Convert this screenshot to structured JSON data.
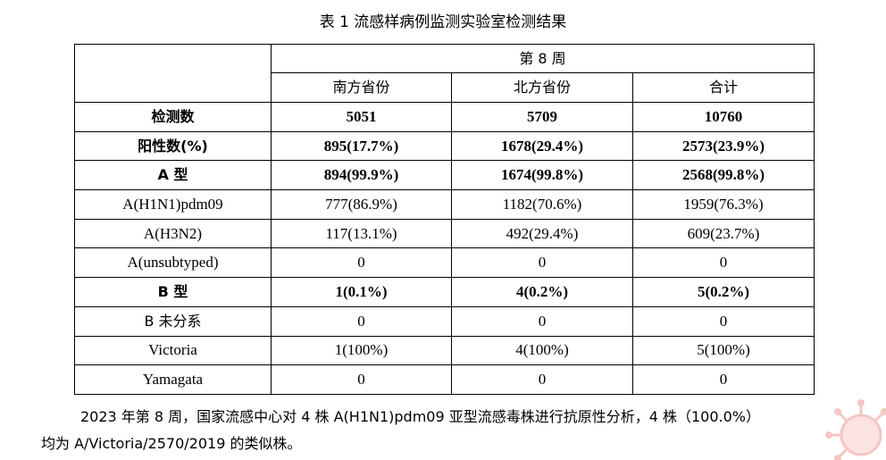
{
  "title": "表 1   流感样病例监测实验室检测结果",
  "table": {
    "week_header": "第 8 周",
    "columns": [
      "南方省份",
      "北方省份",
      "合计"
    ],
    "rows": [
      {
        "label": "检测数",
        "values": [
          "5051",
          "5709",
          "10760"
        ]
      },
      {
        "label": "阳性数(%)",
        "values": [
          "895(17.7%)",
          "1678(29.4%)",
          "2573(23.9%)"
        ]
      },
      {
        "label": "A 型",
        "values": [
          "894(99.9%)",
          "1674(99.8%)",
          "2568(99.8%)"
        ]
      },
      {
        "label": "A(H1N1)pdm09",
        "values": [
          "777(86.9%)",
          "1182(70.6%)",
          "1959(76.3%)"
        ]
      },
      {
        "label": "A(H3N2)",
        "values": [
          "117(13.1%)",
          "492(29.4%)",
          "609(23.7%)"
        ]
      },
      {
        "label": "A(unsubtyped)",
        "values": [
          "0",
          "0",
          "0"
        ]
      },
      {
        "label": "B 型",
        "values": [
          "1(0.1%)",
          "4(0.2%)",
          "5(0.2%)"
        ]
      },
      {
        "label": "B 未分系",
        "values": [
          "0",
          "0",
          "0"
        ]
      },
      {
        "label": "Victoria",
        "values": [
          "1(100%)",
          "4(100%)",
          "5(100%)"
        ]
      },
      {
        "label": "Yamagata",
        "values": [
          "0",
          "0",
          "0"
        ]
      }
    ]
  },
  "footnote": {
    "line1": "2023 年第 8 周，国家流感中心对 4 株 A(H1N1)pdm09 亚型流感毒株进行抗原性分析，4 株（100.0%）",
    "line2": "均为 A/Victoria/2570/2019 的类似株。"
  },
  "decoration": {
    "name": "virus-watermark",
    "color": "#f4c7c3"
  }
}
